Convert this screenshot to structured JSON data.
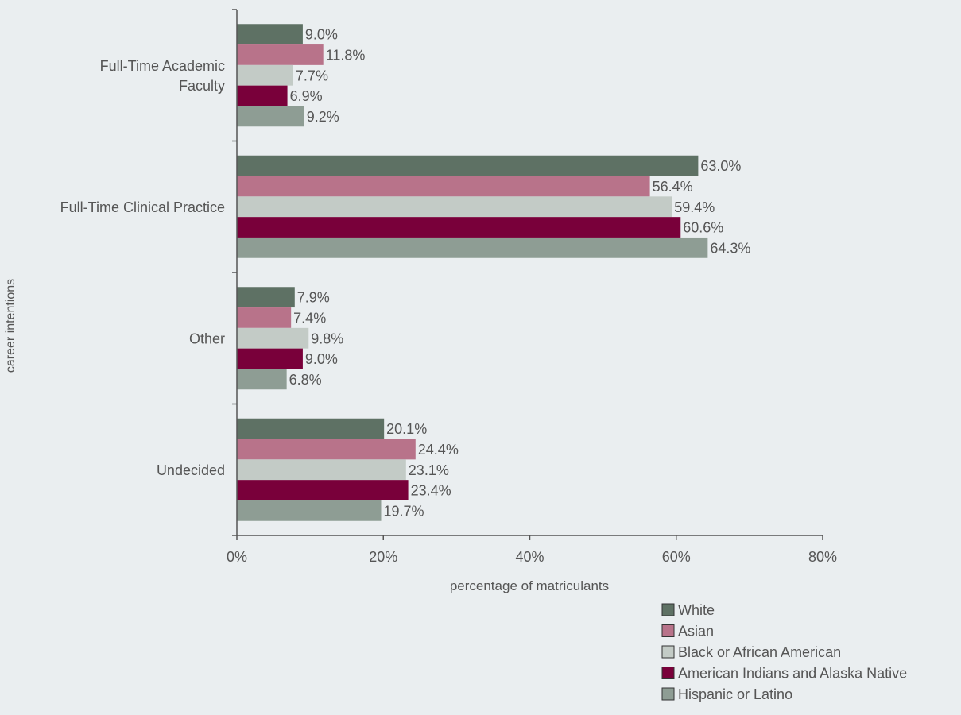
{
  "chart_data": {
    "type": "bar",
    "orientation": "horizontal",
    "title": "",
    "xlabel": "percentage of matriculants",
    "ylabel": "career intentions",
    "xlim": [
      0,
      80
    ],
    "x_ticks": [
      "0%",
      "20%",
      "40%",
      "60%",
      "80%"
    ],
    "grid": false,
    "legend_position": "bottom-right",
    "categories": [
      {
        "id": "faculty",
        "label_lines": [
          "Full-Time Academic",
          "Faculty"
        ]
      },
      {
        "id": "clinical",
        "label_lines": [
          "Full-Time Clinical Practice"
        ]
      },
      {
        "id": "other",
        "label_lines": [
          "Other"
        ]
      },
      {
        "id": "undecided",
        "label_lines": [
          "Undecided"
        ]
      }
    ],
    "series": [
      {
        "name": "White",
        "color": "#5e7164",
        "values": [
          9.0,
          63.0,
          7.9,
          20.1
        ],
        "labels": [
          "9.0%",
          "63.0%",
          "7.9%",
          "20.1%"
        ]
      },
      {
        "name": "Asian",
        "color": "#b8738a",
        "values": [
          11.8,
          56.4,
          7.4,
          24.4
        ],
        "labels": [
          "11.8%",
          "56.4%",
          "7.4%",
          "24.4%"
        ]
      },
      {
        "name": "Black or African American",
        "color": "#c3cbc6",
        "values": [
          7.7,
          59.4,
          9.8,
          23.1
        ],
        "labels": [
          "7.7%",
          "59.4%",
          "9.8%",
          "23.1%"
        ]
      },
      {
        "name": "American Indians and Alaska Native",
        "color": "#79003a",
        "values": [
          6.9,
          60.6,
          9.0,
          23.4
        ],
        "labels": [
          "6.9%",
          "60.6%",
          "9.0%",
          "23.4%"
        ]
      },
      {
        "name": "Hispanic or Latino",
        "color": "#8e9d94",
        "values": [
          9.2,
          64.3,
          6.8,
          19.7
        ],
        "labels": [
          "9.2%",
          "64.3%",
          "6.8%",
          "19.7%"
        ]
      }
    ]
  }
}
